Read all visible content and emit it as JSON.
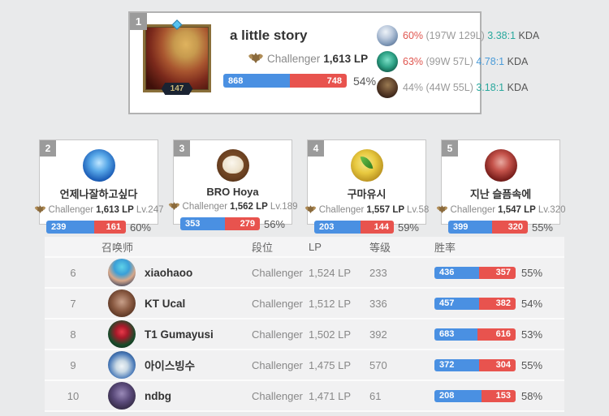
{
  "colors": {
    "bar_win_blue": "#4a90e2",
    "bar_loss_red": "#e8534e",
    "winrate_red": "#e0564f",
    "winrate_gray": "#9a9a9a",
    "kda_teal": "#29a89d",
    "kda_blue": "#4a9bd8",
    "badge_gray": "#9b9b9b"
  },
  "top_player": {
    "rank": "1",
    "name": "a little story",
    "tier": "Challenger",
    "lp": "1,613 LP",
    "summoner_level": "147",
    "wins": 868,
    "losses": 748,
    "win_pct": "54%",
    "champions": [
      {
        "avatar": "pale-blue-champion",
        "win_pct": "60%",
        "pct_color": "#e0564f",
        "record": "(197W 129L)",
        "kda": "3.38:1",
        "kda_color": "#29a89d",
        "kda_label": "KDA"
      },
      {
        "avatar": "green-champion",
        "win_pct": "63%",
        "pct_color": "#e0564f",
        "record": "(99W 57L)",
        "kda": "4.78:1",
        "kda_color": "#4a9bd8",
        "kda_label": "KDA"
      },
      {
        "avatar": "dark-champion",
        "win_pct": "44%",
        "pct_color": "#9a9a9a",
        "record": "(44W 55L)",
        "kda": "3.18:1",
        "kda_color": "#29a89d",
        "kda_label": "KDA"
      }
    ]
  },
  "mini_cards": [
    {
      "rank": "2",
      "name": "언제나잘하고싶다",
      "tier": "Challenger",
      "lp": "1,613 LP",
      "level": "Lv.247",
      "wins": 239,
      "losses": 161,
      "win_pct": "60%"
    },
    {
      "rank": "3",
      "name": "BRO Hoya",
      "tier": "Challenger",
      "lp": "1,562 LP",
      "level": "Lv.189",
      "wins": 353,
      "losses": 279,
      "win_pct": "56%"
    },
    {
      "rank": "4",
      "name": "구마유시",
      "tier": "Challenger",
      "lp": "1,557 LP",
      "level": "Lv.58",
      "wins": 203,
      "losses": 144,
      "win_pct": "59%"
    },
    {
      "rank": "5",
      "name": "지난 슬픔속에",
      "tier": "Challenger",
      "lp": "1,547 LP",
      "level": "Lv.320",
      "wins": 399,
      "losses": 320,
      "win_pct": "55%"
    }
  ],
  "table": {
    "headers": [
      "召唤师",
      "段位",
      "LP",
      "等级",
      "胜率"
    ],
    "rows": [
      {
        "rank": "6",
        "name": "xiaohaoo",
        "tier": "Challenger",
        "lp": "1,524 LP",
        "level": "233",
        "wins": 436,
        "losses": 357,
        "win_pct": "55%"
      },
      {
        "rank": "7",
        "name": "KT Ucal",
        "tier": "Challenger",
        "lp": "1,512 LP",
        "level": "336",
        "wins": 457,
        "losses": 382,
        "win_pct": "54%"
      },
      {
        "rank": "8",
        "name": "T1 Gumayusi",
        "tier": "Challenger",
        "lp": "1,502 LP",
        "level": "392",
        "wins": 683,
        "losses": 616,
        "win_pct": "53%"
      },
      {
        "rank": "9",
        "name": "아이스빙수",
        "tier": "Challenger",
        "lp": "1,475 LP",
        "level": "570",
        "wins": 372,
        "losses": 304,
        "win_pct": "55%"
      },
      {
        "rank": "10",
        "name": "ndbg",
        "tier": "Challenger",
        "lp": "1,471 LP",
        "level": "61",
        "wins": 208,
        "losses": 153,
        "win_pct": "58%"
      }
    ]
  }
}
